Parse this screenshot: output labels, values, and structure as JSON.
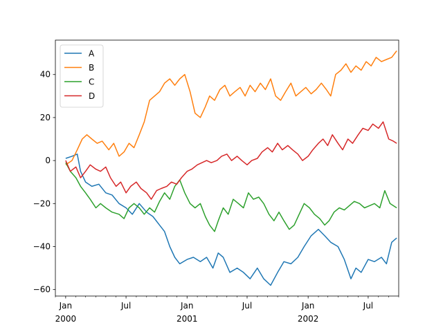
{
  "chart_data": {
    "type": "line",
    "title": "",
    "xlabel": "",
    "ylabel": "",
    "x_range": [
      "1999-12-01",
      "2002-10-01"
    ],
    "ylim": [
      -63,
      56
    ],
    "grid": false,
    "legend_position": "upper-left",
    "x_major_ticks": [
      {
        "date": "2000-01-01",
        "label": "Jan",
        "label2": "2000"
      },
      {
        "date": "2000-07-01",
        "label": "Jul",
        "label2": ""
      },
      {
        "date": "2001-01-01",
        "label": "Jan",
        "label2": "2001"
      },
      {
        "date": "2001-07-01",
        "label": "Jul",
        "label2": ""
      },
      {
        "date": "2002-01-01",
        "label": "Jan",
        "label2": "2002"
      },
      {
        "date": "2002-07-01",
        "label": "Jul",
        "label2": ""
      }
    ],
    "y_ticks": [
      {
        "value": 40,
        "label": "40"
      },
      {
        "value": 20,
        "label": "20"
      },
      {
        "value": 0,
        "label": "0"
      },
      {
        "value": -20,
        "label": "−20"
      },
      {
        "value": -40,
        "label": "−40"
      },
      {
        "value": -60,
        "label": "−60"
      }
    ],
    "series": [
      {
        "name": "A",
        "color": "#1f77b4",
        "points": [
          [
            "2000-01-01",
            1
          ],
          [
            "2000-01-20",
            2
          ],
          [
            "2000-02-05",
            3
          ],
          [
            "2000-02-15",
            -5
          ],
          [
            "2000-03-01",
            -10
          ],
          [
            "2000-03-20",
            -12
          ],
          [
            "2000-04-10",
            -11
          ],
          [
            "2000-05-01",
            -15
          ],
          [
            "2000-05-20",
            -16
          ],
          [
            "2000-06-10",
            -20
          ],
          [
            "2000-07-01",
            -22
          ],
          [
            "2000-07-20",
            -25
          ],
          [
            "2000-08-10",
            -20
          ],
          [
            "2000-09-01",
            -24
          ],
          [
            "2000-09-20",
            -26
          ],
          [
            "2000-10-10",
            -30
          ],
          [
            "2000-10-25",
            -33
          ],
          [
            "2000-11-10",
            -40
          ],
          [
            "2000-11-25",
            -45
          ],
          [
            "2000-12-10",
            -48
          ],
          [
            "2001-01-01",
            -46
          ],
          [
            "2001-01-20",
            -45
          ],
          [
            "2001-02-10",
            -47
          ],
          [
            "2001-03-01",
            -45
          ],
          [
            "2001-03-20",
            -50
          ],
          [
            "2001-04-05",
            -43
          ],
          [
            "2001-04-20",
            -45
          ],
          [
            "2001-05-10",
            -52
          ],
          [
            "2001-06-01",
            -50
          ],
          [
            "2001-06-20",
            -52
          ],
          [
            "2001-07-10",
            -55
          ],
          [
            "2001-08-01",
            -50
          ],
          [
            "2001-08-20",
            -55
          ],
          [
            "2001-09-10",
            -58
          ],
          [
            "2001-10-01",
            -52
          ],
          [
            "2001-10-20",
            -47
          ],
          [
            "2001-11-10",
            -48
          ],
          [
            "2001-12-01",
            -45
          ],
          [
            "2001-12-20",
            -40
          ],
          [
            "2002-01-10",
            -35
          ],
          [
            "2002-02-01",
            -32
          ],
          [
            "2002-02-20",
            -35
          ],
          [
            "2002-03-10",
            -38
          ],
          [
            "2002-04-01",
            -40
          ],
          [
            "2002-04-20",
            -46
          ],
          [
            "2002-05-10",
            -55
          ],
          [
            "2002-05-25",
            -50
          ],
          [
            "2002-06-10",
            -52
          ],
          [
            "2002-07-01",
            -46
          ],
          [
            "2002-07-20",
            -47
          ],
          [
            "2002-08-10",
            -45
          ],
          [
            "2002-08-25",
            -48
          ],
          [
            "2002-09-10",
            -38
          ],
          [
            "2002-09-25",
            -36
          ]
        ]
      },
      {
        "name": "B",
        "color": "#ff7f0e",
        "points": [
          [
            "2000-01-01",
            -2
          ],
          [
            "2000-01-20",
            0
          ],
          [
            "2000-02-05",
            5
          ],
          [
            "2000-02-20",
            10
          ],
          [
            "2000-03-05",
            12
          ],
          [
            "2000-03-20",
            10
          ],
          [
            "2000-04-05",
            8
          ],
          [
            "2000-04-20",
            9
          ],
          [
            "2000-05-10",
            5
          ],
          [
            "2000-05-25",
            8
          ],
          [
            "2000-06-10",
            2
          ],
          [
            "2000-06-25",
            4
          ],
          [
            "2000-07-10",
            8
          ],
          [
            "2000-07-25",
            6
          ],
          [
            "2000-08-10",
            12
          ],
          [
            "2000-08-25",
            18
          ],
          [
            "2000-09-10",
            28
          ],
          [
            "2000-09-25",
            30
          ],
          [
            "2000-10-10",
            32
          ],
          [
            "2000-10-25",
            36
          ],
          [
            "2000-11-10",
            38
          ],
          [
            "2000-11-25",
            35
          ],
          [
            "2000-12-10",
            38
          ],
          [
            "2000-12-25",
            40
          ],
          [
            "2001-01-10",
            32
          ],
          [
            "2001-01-25",
            22
          ],
          [
            "2001-02-10",
            20
          ],
          [
            "2001-02-25",
            25
          ],
          [
            "2001-03-10",
            30
          ],
          [
            "2001-03-25",
            28
          ],
          [
            "2001-04-10",
            33
          ],
          [
            "2001-04-25",
            35
          ],
          [
            "2001-05-10",
            30
          ],
          [
            "2001-05-25",
            32
          ],
          [
            "2001-06-10",
            34
          ],
          [
            "2001-06-25",
            30
          ],
          [
            "2001-07-10",
            35
          ],
          [
            "2001-07-25",
            32
          ],
          [
            "2001-08-10",
            36
          ],
          [
            "2001-08-25",
            33
          ],
          [
            "2001-09-10",
            38
          ],
          [
            "2001-09-25",
            30
          ],
          [
            "2001-10-10",
            28
          ],
          [
            "2001-10-25",
            32
          ],
          [
            "2001-11-10",
            36
          ],
          [
            "2001-11-25",
            30
          ],
          [
            "2001-12-10",
            32
          ],
          [
            "2001-12-25",
            34
          ],
          [
            "2002-01-10",
            31
          ],
          [
            "2002-01-25",
            33
          ],
          [
            "2002-02-10",
            36
          ],
          [
            "2002-02-25",
            33
          ],
          [
            "2002-03-10",
            30
          ],
          [
            "2002-03-25",
            40
          ],
          [
            "2002-04-10",
            42
          ],
          [
            "2002-04-25",
            45
          ],
          [
            "2002-05-10",
            41
          ],
          [
            "2002-05-25",
            44
          ],
          [
            "2002-06-10",
            42
          ],
          [
            "2002-06-25",
            46
          ],
          [
            "2002-07-10",
            44
          ],
          [
            "2002-07-25",
            48
          ],
          [
            "2002-08-10",
            46
          ],
          [
            "2002-08-25",
            47
          ],
          [
            "2002-09-10",
            48
          ],
          [
            "2002-09-25",
            51
          ]
        ]
      },
      {
        "name": "C",
        "color": "#2ca02c",
        "points": [
          [
            "2000-01-01",
            -1
          ],
          [
            "2000-01-15",
            -5
          ],
          [
            "2000-02-01",
            -8
          ],
          [
            "2000-02-15",
            -12
          ],
          [
            "2000-03-01",
            -15
          ],
          [
            "2000-03-15",
            -18
          ],
          [
            "2000-04-01",
            -22
          ],
          [
            "2000-04-15",
            -20
          ],
          [
            "2000-05-01",
            -22
          ],
          [
            "2000-05-20",
            -24
          ],
          [
            "2000-06-10",
            -25
          ],
          [
            "2000-06-25",
            -27
          ],
          [
            "2000-07-10",
            -22
          ],
          [
            "2000-07-25",
            -20
          ],
          [
            "2000-08-10",
            -22
          ],
          [
            "2000-08-25",
            -25
          ],
          [
            "2000-09-10",
            -22
          ],
          [
            "2000-09-25",
            -24
          ],
          [
            "2000-10-10",
            -19
          ],
          [
            "2000-10-25",
            -15
          ],
          [
            "2000-11-10",
            -18
          ],
          [
            "2000-11-25",
            -12
          ],
          [
            "2000-12-10",
            -9
          ],
          [
            "2000-12-25",
            -15
          ],
          [
            "2001-01-10",
            -20
          ],
          [
            "2001-01-25",
            -22
          ],
          [
            "2001-02-10",
            -20
          ],
          [
            "2001-02-25",
            -26
          ],
          [
            "2001-03-10",
            -30
          ],
          [
            "2001-03-25",
            -33
          ],
          [
            "2001-04-05",
            -28
          ],
          [
            "2001-04-20",
            -22
          ],
          [
            "2001-05-05",
            -25
          ],
          [
            "2001-05-20",
            -18
          ],
          [
            "2001-06-05",
            -20
          ],
          [
            "2001-06-20",
            -22
          ],
          [
            "2001-07-05",
            -15
          ],
          [
            "2001-07-20",
            -18
          ],
          [
            "2001-08-05",
            -17
          ],
          [
            "2001-08-20",
            -20
          ],
          [
            "2001-09-05",
            -25
          ],
          [
            "2001-09-20",
            -28
          ],
          [
            "2001-10-05",
            -24
          ],
          [
            "2001-10-20",
            -28
          ],
          [
            "2001-11-05",
            -32
          ],
          [
            "2001-11-20",
            -30
          ],
          [
            "2001-12-05",
            -25
          ],
          [
            "2001-12-20",
            -20
          ],
          [
            "2002-01-05",
            -22
          ],
          [
            "2002-01-20",
            -25
          ],
          [
            "2002-02-05",
            -27
          ],
          [
            "2002-02-20",
            -30
          ],
          [
            "2002-03-05",
            -28
          ],
          [
            "2002-03-20",
            -24
          ],
          [
            "2002-04-05",
            -22
          ],
          [
            "2002-04-20",
            -23
          ],
          [
            "2002-05-05",
            -21
          ],
          [
            "2002-05-20",
            -19
          ],
          [
            "2002-06-05",
            -20
          ],
          [
            "2002-06-20",
            -22
          ],
          [
            "2002-07-05",
            -21
          ],
          [
            "2002-07-20",
            -20
          ],
          [
            "2002-08-05",
            -22
          ],
          [
            "2002-08-20",
            -14
          ],
          [
            "2002-09-05",
            -20
          ],
          [
            "2002-09-25",
            -22
          ]
        ]
      },
      {
        "name": "D",
        "color": "#d62728",
        "points": [
          [
            "2000-01-01",
            0
          ],
          [
            "2000-01-15",
            -5
          ],
          [
            "2000-02-01",
            -3
          ],
          [
            "2000-02-15",
            -8
          ],
          [
            "2000-03-01",
            -5
          ],
          [
            "2000-03-15",
            -2
          ],
          [
            "2000-04-01",
            -4
          ],
          [
            "2000-04-15",
            -5
          ],
          [
            "2000-05-01",
            -3
          ],
          [
            "2000-05-15",
            -8
          ],
          [
            "2000-06-01",
            -12
          ],
          [
            "2000-06-15",
            -10
          ],
          [
            "2000-07-01",
            -15
          ],
          [
            "2000-07-15",
            -12
          ],
          [
            "2000-08-01",
            -10
          ],
          [
            "2000-08-15",
            -13
          ],
          [
            "2000-09-01",
            -15
          ],
          [
            "2000-09-15",
            -18
          ],
          [
            "2000-10-01",
            -14
          ],
          [
            "2000-10-15",
            -13
          ],
          [
            "2000-11-01",
            -12
          ],
          [
            "2000-11-15",
            -10
          ],
          [
            "2000-12-01",
            -11
          ],
          [
            "2000-12-15",
            -8
          ],
          [
            "2001-01-01",
            -5
          ],
          [
            "2001-01-15",
            -4
          ],
          [
            "2001-02-01",
            -2
          ],
          [
            "2001-02-15",
            -1
          ],
          [
            "2001-03-01",
            0
          ],
          [
            "2001-03-15",
            -1
          ],
          [
            "2001-04-01",
            0
          ],
          [
            "2001-04-15",
            2
          ],
          [
            "2001-05-01",
            3
          ],
          [
            "2001-05-15",
            0
          ],
          [
            "2001-06-01",
            2
          ],
          [
            "2001-06-15",
            0
          ],
          [
            "2001-07-01",
            -2
          ],
          [
            "2001-07-15",
            0
          ],
          [
            "2001-08-01",
            1
          ],
          [
            "2001-08-15",
            4
          ],
          [
            "2001-09-01",
            6
          ],
          [
            "2001-09-15",
            4
          ],
          [
            "2001-10-01",
            8
          ],
          [
            "2001-10-15",
            5
          ],
          [
            "2001-11-01",
            7
          ],
          [
            "2001-11-15",
            5
          ],
          [
            "2001-12-01",
            3
          ],
          [
            "2001-12-15",
            0
          ],
          [
            "2002-01-01",
            2
          ],
          [
            "2002-01-15",
            5
          ],
          [
            "2002-02-01",
            8
          ],
          [
            "2002-02-15",
            10
          ],
          [
            "2002-03-01",
            7
          ],
          [
            "2002-03-15",
            12
          ],
          [
            "2002-04-01",
            8
          ],
          [
            "2002-04-15",
            5
          ],
          [
            "2002-05-01",
            10
          ],
          [
            "2002-05-15",
            8
          ],
          [
            "2002-06-01",
            12
          ],
          [
            "2002-06-15",
            15
          ],
          [
            "2002-07-01",
            14
          ],
          [
            "2002-07-15",
            17
          ],
          [
            "2002-08-01",
            15
          ],
          [
            "2002-08-15",
            18
          ],
          [
            "2002-09-01",
            10
          ],
          [
            "2002-09-15",
            9
          ],
          [
            "2002-09-25",
            8
          ]
        ]
      }
    ]
  }
}
